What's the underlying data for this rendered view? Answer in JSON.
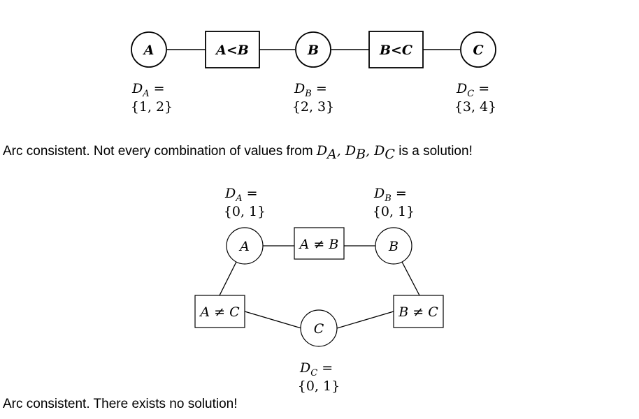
{
  "diagram1": {
    "nodes": {
      "A": "A",
      "A_lt_B": "A<B",
      "B": "B",
      "B_lt_C": "B<C",
      "C": "C"
    },
    "domains": {
      "A": {
        "name": "D",
        "sub": "A",
        "eq": " =",
        "set": "{1, 2}"
      },
      "B": {
        "name": "D",
        "sub": "B",
        "eq": " =",
        "set": "{2, 3}"
      },
      "C": {
        "name": "D",
        "sub": "C",
        "eq": " =",
        "set": "{3, 4}"
      }
    },
    "caption": {
      "prefix": "Arc consistent. Not every combination of values from ",
      "d1": "D",
      "s1": "A",
      "d2": "D",
      "s2": "B",
      "d3": "D",
      "s3": "C",
      "suffix": " is a solution!"
    }
  },
  "diagram2": {
    "nodes": {
      "A": "A",
      "B": "B",
      "C": "C",
      "A_neq_B": "A ≠ B",
      "A_neq_C": "A ≠ C",
      "B_neq_C": "B ≠ C"
    },
    "domains": {
      "A": {
        "name": "D",
        "sub": "A",
        "eq": " =",
        "set": "{0, 1}"
      },
      "B": {
        "name": "D",
        "sub": "B",
        "eq": " =",
        "set": "{0, 1}"
      },
      "C": {
        "name": "D",
        "sub": "C",
        "eq": " =",
        "set": "{0, 1}"
      }
    },
    "caption": "Arc consistent. There exists no solution!"
  }
}
